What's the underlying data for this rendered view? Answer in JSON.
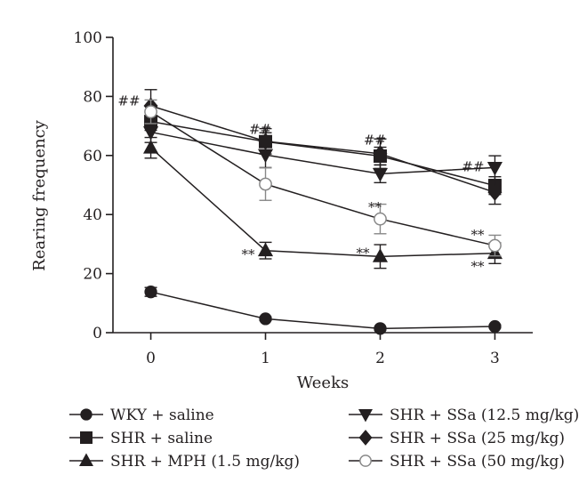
{
  "chart_data": {
    "type": "line",
    "title": "",
    "xlabel": "Weeks",
    "ylabel": "Rearing frequency",
    "x": [
      0,
      1,
      2,
      3
    ],
    "xlim": [
      -0.33,
      3.33
    ],
    "ylim": [
      0,
      100
    ],
    "x_ticks": [
      "0",
      "1",
      "2",
      "3"
    ],
    "y_ticks": [
      "0",
      "20",
      "40",
      "60",
      "80",
      "100"
    ],
    "grid": false,
    "legend_position": "bottom",
    "series": [
      {
        "name": "WKY + saline",
        "marker": "circle",
        "fill": "filled",
        "color": "#231f20",
        "values": [
          13.8,
          4.7,
          1.4,
          2.1
        ],
        "errors": [
          1.5,
          0.6,
          0.5,
          0.5
        ]
      },
      {
        "name": "SHR + saline",
        "marker": "square",
        "fill": "filled",
        "color": "#231f20",
        "values": [
          71.5,
          64.7,
          59.8,
          49.8
        ],
        "errors": [
          3.0,
          3.0,
          3.0,
          3.0
        ]
      },
      {
        "name": "SHR + MPH (1.5 mg/kg)",
        "marker": "triangle-up",
        "fill": "filled",
        "color": "#231f20",
        "values": [
          62.6,
          27.8,
          25.8,
          26.9
        ],
        "errors": [
          3.5,
          2.8,
          4.0,
          3.5
        ]
      },
      {
        "name": "SHR + SSa (12.5 mg/kg)",
        "marker": "triangle-down",
        "fill": "filled",
        "color": "#231f20",
        "values": [
          67.9,
          60.2,
          53.8,
          55.9
        ],
        "errors": [
          3.5,
          4.3,
          3.0,
          4.0
        ]
      },
      {
        "name": "SHR + SSa (25 mg/kg)",
        "marker": "diamond",
        "fill": "filled",
        "color": "#231f20",
        "values": [
          76.8,
          64.8,
          60.6,
          47.5
        ],
        "errors": [
          5.5,
          4.3,
          5.0,
          4.0
        ]
      },
      {
        "name": "SHR + SSa (50 mg/kg)",
        "marker": "circle",
        "fill": "open",
        "color": "#888888",
        "values": [
          74.8,
          50.3,
          38.5,
          29.5
        ],
        "errors": [
          4.0,
          5.5,
          5.0,
          3.5
        ]
      }
    ],
    "annotations": [
      {
        "text": "##",
        "x": 0,
        "y": 78.5,
        "anchor": "left-of-point"
      },
      {
        "text": "##",
        "x": 1,
        "y": 68.8,
        "anchor": "above"
      },
      {
        "text": "##",
        "x": 2,
        "y": 65.2,
        "anchor": "above"
      },
      {
        "text": "##",
        "x": 3,
        "y": 56.2,
        "anchor": "left-of-point"
      },
      {
        "text": "**",
        "x": 2,
        "y": 42.5,
        "anchor": "above"
      },
      {
        "text": "**",
        "x": 3,
        "y": 33.2,
        "anchor": "left-of-point"
      },
      {
        "text": "**",
        "x": 1,
        "y": 26.5,
        "anchor": "left-of-point"
      },
      {
        "text": "**",
        "x": 2,
        "y": 27.0,
        "anchor": "left-of-point"
      },
      {
        "text": "**",
        "x": 3,
        "y": 22.5,
        "anchor": "left-of-point"
      }
    ]
  }
}
